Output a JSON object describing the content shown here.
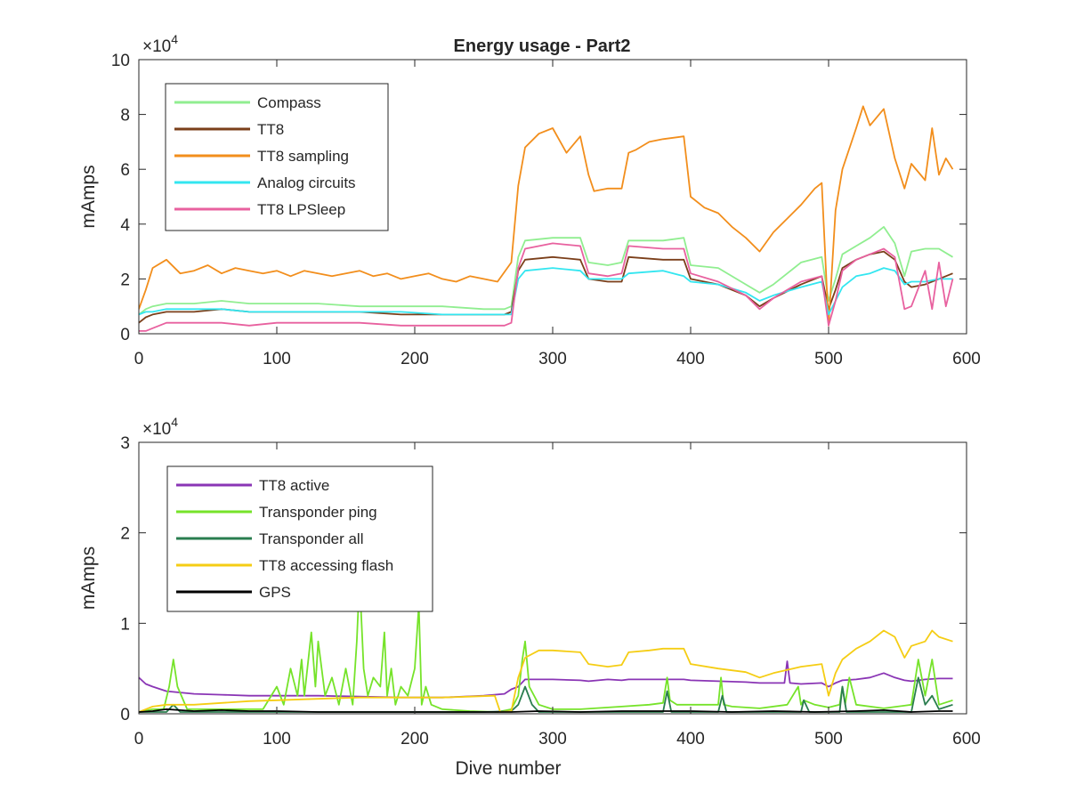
{
  "chart_data": [
    {
      "type": "line",
      "title": "Energy usage - Part2",
      "xlabel": "",
      "ylabel": "mAmps",
      "multiplier": "×10",
      "multiplier_exp": "4",
      "xlim": [
        0,
        600
      ],
      "ylim": [
        0,
        10
      ],
      "xticks": [
        0,
        100,
        200,
        300,
        400,
        500,
        600
      ],
      "yticks": [
        0,
        2,
        4,
        6,
        8,
        10
      ],
      "xtick_labels": [
        "0",
        "100",
        "200",
        "300",
        "400",
        "500",
        "600"
      ],
      "ytick_labels": [
        "0",
        "2",
        "4",
        "6",
        "8",
        "10"
      ],
      "legend_position": "top-left",
      "series": [
        {
          "name": "Compass",
          "color": "#90ee90",
          "x": [
            0,
            5,
            10,
            20,
            40,
            60,
            80,
            100,
            130,
            160,
            190,
            220,
            250,
            265,
            270,
            275,
            280,
            300,
            320,
            326,
            340,
            350,
            355,
            380,
            395,
            400,
            420,
            440,
            450,
            460,
            480,
            495,
            500,
            505,
            510,
            520,
            530,
            540,
            548,
            555,
            560,
            570,
            580,
            590
          ],
          "y": [
            0.7,
            0.9,
            1.0,
            1.1,
            1.1,
            1.2,
            1.1,
            1.1,
            1.1,
            1.0,
            1.0,
            1.0,
            0.9,
            0.9,
            1.0,
            2.8,
            3.4,
            3.5,
            3.5,
            2.6,
            2.5,
            2.6,
            3.4,
            3.4,
            3.5,
            2.5,
            2.4,
            1.8,
            1.5,
            1.8,
            2.6,
            2.8,
            1.2,
            2.0,
            2.9,
            3.2,
            3.5,
            3.9,
            3.3,
            2.1,
            3.0,
            3.1,
            3.1,
            2.8
          ]
        },
        {
          "name": "TT8",
          "color": "#7b3f1a",
          "x": [
            0,
            5,
            10,
            20,
            40,
            60,
            80,
            100,
            130,
            160,
            190,
            220,
            250,
            265,
            270,
            275,
            280,
            300,
            320,
            326,
            340,
            350,
            355,
            380,
            395,
            400,
            420,
            440,
            450,
            460,
            480,
            495,
            500,
            505,
            510,
            520,
            530,
            540,
            548,
            555,
            560,
            570,
            580,
            590
          ],
          "y": [
            0.4,
            0.6,
            0.7,
            0.8,
            0.8,
            0.9,
            0.8,
            0.8,
            0.8,
            0.8,
            0.7,
            0.7,
            0.7,
            0.7,
            0.8,
            2.3,
            2.7,
            2.8,
            2.7,
            2.0,
            1.9,
            1.9,
            2.8,
            2.7,
            2.7,
            2.0,
            1.8,
            1.4,
            1.0,
            1.3,
            1.8,
            2.1,
            0.9,
            1.6,
            2.4,
            2.7,
            2.9,
            3.0,
            2.7,
            1.9,
            1.7,
            1.8,
            2.0,
            2.2
          ]
        },
        {
          "name": "TT8 sampling",
          "color": "#f28e1c",
          "x": [
            0,
            5,
            10,
            20,
            30,
            40,
            50,
            60,
            70,
            80,
            90,
            100,
            110,
            120,
            130,
            140,
            150,
            160,
            170,
            180,
            190,
            200,
            210,
            220,
            230,
            240,
            250,
            260,
            270,
            275,
            280,
            290,
            300,
            310,
            320,
            326,
            330,
            340,
            350,
            355,
            360,
            370,
            380,
            395,
            400,
            410,
            420,
            430,
            440,
            450,
            460,
            470,
            480,
            490,
            495,
            500,
            505,
            510,
            520,
            525,
            530,
            540,
            548,
            555,
            560,
            570,
            575,
            580,
            585,
            590
          ],
          "y": [
            0.9,
            1.6,
            2.4,
            2.7,
            2.2,
            2.3,
            2.5,
            2.2,
            2.4,
            2.3,
            2.2,
            2.3,
            2.1,
            2.3,
            2.2,
            2.1,
            2.2,
            2.3,
            2.1,
            2.2,
            2.0,
            2.1,
            2.2,
            2.0,
            1.9,
            2.1,
            2.0,
            1.9,
            2.6,
            5.4,
            6.8,
            7.3,
            7.5,
            6.6,
            7.2,
            5.8,
            5.2,
            5.3,
            5.3,
            6.6,
            6.7,
            7.0,
            7.1,
            7.2,
            5.0,
            4.6,
            4.4,
            3.9,
            3.5,
            3.0,
            3.7,
            4.2,
            4.7,
            5.3,
            5.5,
            0.3,
            4.5,
            6.0,
            7.5,
            8.3,
            7.6,
            8.2,
            6.4,
            5.3,
            6.2,
            5.6,
            7.5,
            5.8,
            6.4,
            6.0
          ]
        },
        {
          "name": "Analog circuits",
          "color": "#33e6f0",
          "x": [
            0,
            5,
            10,
            20,
            40,
            60,
            80,
            100,
            130,
            160,
            190,
            220,
            250,
            265,
            270,
            275,
            280,
            300,
            320,
            326,
            340,
            350,
            355,
            380,
            395,
            400,
            420,
            440,
            450,
            460,
            480,
            495,
            500,
            505,
            510,
            520,
            530,
            540,
            548,
            555,
            560,
            570,
            580,
            590
          ],
          "y": [
            0.7,
            0.8,
            0.8,
            0.9,
            0.9,
            0.9,
            0.8,
            0.8,
            0.8,
            0.8,
            0.8,
            0.7,
            0.7,
            0.7,
            0.7,
            2.0,
            2.3,
            2.4,
            2.3,
            2.0,
            2.0,
            2.0,
            2.2,
            2.3,
            2.1,
            1.9,
            1.8,
            1.5,
            1.2,
            1.4,
            1.7,
            1.9,
            0.7,
            1.2,
            1.7,
            2.1,
            2.2,
            2.4,
            2.3,
            1.8,
            1.9,
            1.9,
            2.0,
            2.0
          ]
        },
        {
          "name": "TT8 LPSleep",
          "color": "#e8619f",
          "x": [
            0,
            5,
            10,
            20,
            40,
            60,
            80,
            100,
            130,
            160,
            190,
            220,
            250,
            265,
            270,
            275,
            280,
            300,
            320,
            326,
            340,
            350,
            355,
            380,
            395,
            400,
            420,
            440,
            450,
            460,
            480,
            495,
            500,
            505,
            510,
            520,
            530,
            540,
            548,
            555,
            560,
            570,
            575,
            580,
            585,
            590
          ],
          "y": [
            0.1,
            0.1,
            0.2,
            0.4,
            0.4,
            0.4,
            0.3,
            0.4,
            0.4,
            0.4,
            0.3,
            0.3,
            0.3,
            0.3,
            0.4,
            2.4,
            3.1,
            3.3,
            3.2,
            2.2,
            2.1,
            2.2,
            3.2,
            3.1,
            3.1,
            2.2,
            1.9,
            1.4,
            0.9,
            1.3,
            1.9,
            2.1,
            0.3,
            1.2,
            2.3,
            2.7,
            2.9,
            3.1,
            2.8,
            0.9,
            1.0,
            2.3,
            0.9,
            2.6,
            1.0,
            2.0
          ]
        }
      ]
    },
    {
      "type": "line",
      "title": "",
      "xlabel": "Dive number",
      "ylabel": "mAmps",
      "multiplier": "×10",
      "multiplier_exp": "4",
      "xlim": [
        0,
        600
      ],
      "ylim": [
        0,
        3
      ],
      "xticks": [
        0,
        100,
        200,
        300,
        400,
        500,
        600
      ],
      "yticks": [
        0,
        1,
        2,
        3
      ],
      "xtick_labels": [
        "0",
        "100",
        "200",
        "300",
        "400",
        "500",
        "600"
      ],
      "ytick_labels": [
        "0",
        "1",
        "2",
        "3"
      ],
      "legend_position": "top-left",
      "series": [
        {
          "name": "TT8 active",
          "color": "#8a35b5",
          "x": [
            0,
            5,
            10,
            20,
            40,
            60,
            80,
            100,
            130,
            160,
            190,
            220,
            250,
            265,
            270,
            275,
            280,
            300,
            320,
            326,
            340,
            350,
            355,
            380,
            395,
            400,
            420,
            440,
            450,
            460,
            468,
            470,
            472,
            480,
            495,
            500,
            505,
            510,
            520,
            530,
            540,
            548,
            555,
            560,
            570,
            580,
            590
          ],
          "y": [
            0.4,
            0.33,
            0.3,
            0.25,
            0.22,
            0.21,
            0.2,
            0.2,
            0.2,
            0.19,
            0.18,
            0.18,
            0.2,
            0.22,
            0.27,
            0.3,
            0.38,
            0.38,
            0.37,
            0.36,
            0.38,
            0.37,
            0.38,
            0.38,
            0.38,
            0.37,
            0.36,
            0.35,
            0.34,
            0.34,
            0.34,
            0.58,
            0.34,
            0.33,
            0.34,
            0.3,
            0.34,
            0.37,
            0.38,
            0.4,
            0.45,
            0.4,
            0.37,
            0.36,
            0.38,
            0.39,
            0.39
          ]
        },
        {
          "name": "Transponder ping",
          "color": "#76e32a",
          "x": [
            0,
            10,
            18,
            22,
            25,
            28,
            35,
            60,
            90,
            100,
            105,
            110,
            115,
            118,
            120,
            125,
            128,
            130,
            135,
            140,
            145,
            150,
            155,
            158,
            160,
            163,
            166,
            170,
            175,
            178,
            180,
            183,
            186,
            190,
            195,
            200,
            203,
            205,
            208,
            212,
            220,
            240,
            260,
            270,
            275,
            278,
            280,
            283,
            290,
            300,
            320,
            350,
            370,
            380,
            383,
            385,
            388,
            390,
            400,
            420,
            422,
            424,
            430,
            450,
            470,
            478,
            480,
            482,
            490,
            500,
            508,
            510,
            512,
            515,
            520,
            540,
            560,
            565,
            570,
            575,
            580,
            590
          ],
          "y": [
            0.02,
            0.05,
            0.05,
            0.3,
            0.6,
            0.3,
            0.05,
            0.05,
            0.05,
            0.3,
            0.1,
            0.5,
            0.2,
            0.6,
            0.2,
            0.9,
            0.3,
            0.8,
            0.2,
            0.4,
            0.1,
            0.5,
            0.1,
            0.8,
            1.5,
            0.5,
            0.2,
            0.4,
            0.3,
            0.9,
            0.2,
            0.5,
            0.1,
            0.3,
            0.2,
            0.5,
            1.2,
            0.1,
            0.3,
            0.1,
            0.05,
            0.03,
            0.02,
            0.05,
            0.2,
            0.6,
            0.8,
            0.3,
            0.1,
            0.05,
            0.05,
            0.08,
            0.1,
            0.12,
            0.4,
            0.15,
            0.12,
            0.1,
            0.1,
            0.1,
            0.4,
            0.1,
            0.08,
            0.06,
            0.1,
            0.3,
            0.1,
            0.15,
            0.1,
            0.07,
            0.1,
            0.3,
            0.1,
            0.4,
            0.1,
            0.06,
            0.1,
            0.6,
            0.2,
            0.6,
            0.1,
            0.15
          ]
        },
        {
          "name": "Transponder all",
          "color": "#2a7d4f",
          "x": [
            0,
            20,
            25,
            30,
            60,
            100,
            150,
            200,
            250,
            270,
            275,
            280,
            285,
            290,
            300,
            350,
            380,
            383,
            386,
            390,
            400,
            420,
            423,
            426,
            450,
            480,
            482,
            486,
            500,
            508,
            510,
            513,
            520,
            560,
            565,
            570,
            575,
            580,
            590
          ],
          "y": [
            0.02,
            0.02,
            0.1,
            0.02,
            0.02,
            0.02,
            0.02,
            0.02,
            0.02,
            0.03,
            0.1,
            0.3,
            0.1,
            0.02,
            0.02,
            0.02,
            0.02,
            0.25,
            0.02,
            0.02,
            0.02,
            0.02,
            0.2,
            0.02,
            0.02,
            0.02,
            0.15,
            0.02,
            0.02,
            0.02,
            0.3,
            0.02,
            0.02,
            0.02,
            0.4,
            0.1,
            0.2,
            0.05,
            0.1
          ]
        },
        {
          "name": "TT8 accessing flash",
          "color": "#f5cd14",
          "x": [
            0,
            5,
            10,
            20,
            40,
            60,
            80,
            100,
            120,
            140,
            160,
            180,
            200,
            220,
            240,
            258,
            262,
            270,
            275,
            280,
            290,
            300,
            320,
            326,
            340,
            350,
            355,
            370,
            380,
            395,
            400,
            420,
            440,
            450,
            460,
            480,
            495,
            500,
            505,
            510,
            520,
            530,
            540,
            548,
            555,
            560,
            570,
            575,
            580,
            590
          ],
          "y": [
            0.02,
            0.05,
            0.08,
            0.1,
            0.1,
            0.12,
            0.14,
            0.15,
            0.16,
            0.17,
            0.18,
            0.18,
            0.18,
            0.18,
            0.19,
            0.2,
            0.02,
            0.03,
            0.4,
            0.62,
            0.7,
            0.7,
            0.68,
            0.55,
            0.52,
            0.54,
            0.68,
            0.7,
            0.72,
            0.72,
            0.55,
            0.5,
            0.46,
            0.4,
            0.45,
            0.52,
            0.55,
            0.2,
            0.45,
            0.6,
            0.72,
            0.8,
            0.92,
            0.85,
            0.62,
            0.75,
            0.8,
            0.92,
            0.85,
            0.8
          ]
        },
        {
          "name": "GPS",
          "color": "#000000",
          "x": [
            0,
            10,
            20,
            40,
            60,
            80,
            100,
            130,
            160,
            190,
            220,
            250,
            270,
            290,
            320,
            350,
            380,
            400,
            430,
            460,
            490,
            520,
            540,
            560,
            580,
            590
          ],
          "y": [
            0.02,
            0.03,
            0.05,
            0.03,
            0.04,
            0.03,
            0.03,
            0.02,
            0.02,
            0.02,
            0.02,
            0.02,
            0.02,
            0.03,
            0.02,
            0.03,
            0.03,
            0.03,
            0.02,
            0.03,
            0.02,
            0.03,
            0.04,
            0.02,
            0.03,
            0.03
          ]
        }
      ]
    }
  ]
}
